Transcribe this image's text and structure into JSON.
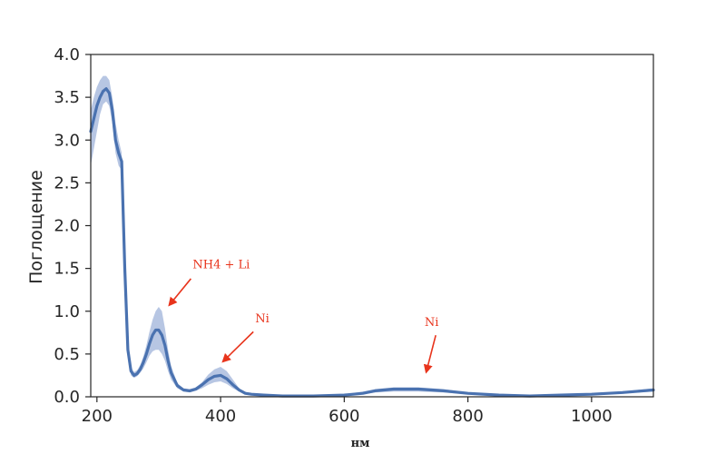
{
  "chart_data": {
    "type": "line",
    "title": "",
    "xlabel": "нм",
    "ylabel": "Поглощение",
    "xlim": [
      190,
      1100
    ],
    "ylim": [
      0,
      4.0
    ],
    "xticks": [
      200,
      400,
      600,
      800,
      1000
    ],
    "xtick_labels": [
      "200",
      "400",
      "600",
      "800",
      "1000"
    ],
    "yticks": [
      0.0,
      0.5,
      1.0,
      1.5,
      2.0,
      2.5,
      3.0,
      3.5,
      4.0
    ],
    "ytick_labels": [
      "0.0",
      "0.5",
      "1.0",
      "1.5",
      "2.0",
      "2.5",
      "3.0",
      "3.5",
      "4.0"
    ],
    "grid": false,
    "series": [
      {
        "color": "#4a72b0",
        "band_color": "#9fb3d9",
        "x": [
          190,
          195,
          200,
          205,
          210,
          215,
          220,
          225,
          230,
          235,
          240,
          245,
          250,
          255,
          260,
          265,
          270,
          275,
          280,
          285,
          290,
          295,
          300,
          305,
          310,
          315,
          320,
          330,
          340,
          350,
          360,
          370,
          380,
          390,
          400,
          410,
          420,
          430,
          440,
          450,
          470,
          500,
          550,
          600,
          630,
          650,
          680,
          720,
          760,
          800,
          850,
          900,
          950,
          1000,
          1050,
          1100
        ],
        "y": [
          3.1,
          3.25,
          3.4,
          3.5,
          3.57,
          3.6,
          3.55,
          3.35,
          3.0,
          2.85,
          2.75,
          1.5,
          0.55,
          0.3,
          0.25,
          0.27,
          0.32,
          0.4,
          0.5,
          0.62,
          0.72,
          0.78,
          0.78,
          0.72,
          0.6,
          0.42,
          0.28,
          0.13,
          0.08,
          0.07,
          0.09,
          0.14,
          0.2,
          0.24,
          0.25,
          0.21,
          0.14,
          0.08,
          0.04,
          0.03,
          0.02,
          0.01,
          0.01,
          0.02,
          0.04,
          0.07,
          0.09,
          0.09,
          0.07,
          0.04,
          0.02,
          0.01,
          0.02,
          0.03,
          0.05,
          0.08
        ],
        "y_lower": [
          2.7,
          2.9,
          3.1,
          3.3,
          3.42,
          3.45,
          3.4,
          3.2,
          2.85,
          2.7,
          2.65,
          1.45,
          0.5,
          0.25,
          0.22,
          0.24,
          0.28,
          0.33,
          0.4,
          0.48,
          0.53,
          0.55,
          0.55,
          0.5,
          0.42,
          0.3,
          0.2,
          0.1,
          0.06,
          0.05,
          0.07,
          0.1,
          0.14,
          0.17,
          0.18,
          0.15,
          0.1,
          0.06,
          0.03,
          0.02,
          0.01,
          0.0,
          0.0,
          0.01,
          0.03,
          0.05,
          0.06,
          0.06,
          0.05,
          0.03,
          0.01,
          0.0,
          0.01,
          0.02,
          0.04,
          0.06
        ],
        "y_upper": [
          3.35,
          3.5,
          3.62,
          3.7,
          3.75,
          3.75,
          3.7,
          3.5,
          3.2,
          3.0,
          2.85,
          1.55,
          0.6,
          0.35,
          0.29,
          0.31,
          0.37,
          0.47,
          0.6,
          0.76,
          0.9,
          1.0,
          1.05,
          1.0,
          0.8,
          0.55,
          0.36,
          0.16,
          0.1,
          0.09,
          0.11,
          0.17,
          0.26,
          0.32,
          0.35,
          0.3,
          0.2,
          0.1,
          0.05,
          0.04,
          0.03,
          0.02,
          0.02,
          0.03,
          0.06,
          0.09,
          0.11,
          0.11,
          0.09,
          0.05,
          0.03,
          0.02,
          0.03,
          0.04,
          0.06,
          0.1
        ]
      }
    ],
    "annotations": [
      {
        "text": "NH4 + Li",
        "color": "#e8341c",
        "text_x": 355,
        "text_y": 1.5,
        "arrow_to_x": 318,
        "arrow_to_y": 1.08,
        "arrow_from_x": 352,
        "arrow_from_y": 1.38
      },
      {
        "text": "Ni",
        "color": "#e8341c",
        "text_x": 456,
        "text_y": 0.87,
        "arrow_to_x": 405,
        "arrow_to_y": 0.42,
        "arrow_from_x": 453,
        "arrow_from_y": 0.76
      },
      {
        "text": "Ni",
        "color": "#e8341c",
        "text_x": 730,
        "text_y": 0.83,
        "arrow_to_x": 733,
        "arrow_to_y": 0.3,
        "arrow_from_x": 748,
        "arrow_from_y": 0.72
      }
    ]
  }
}
